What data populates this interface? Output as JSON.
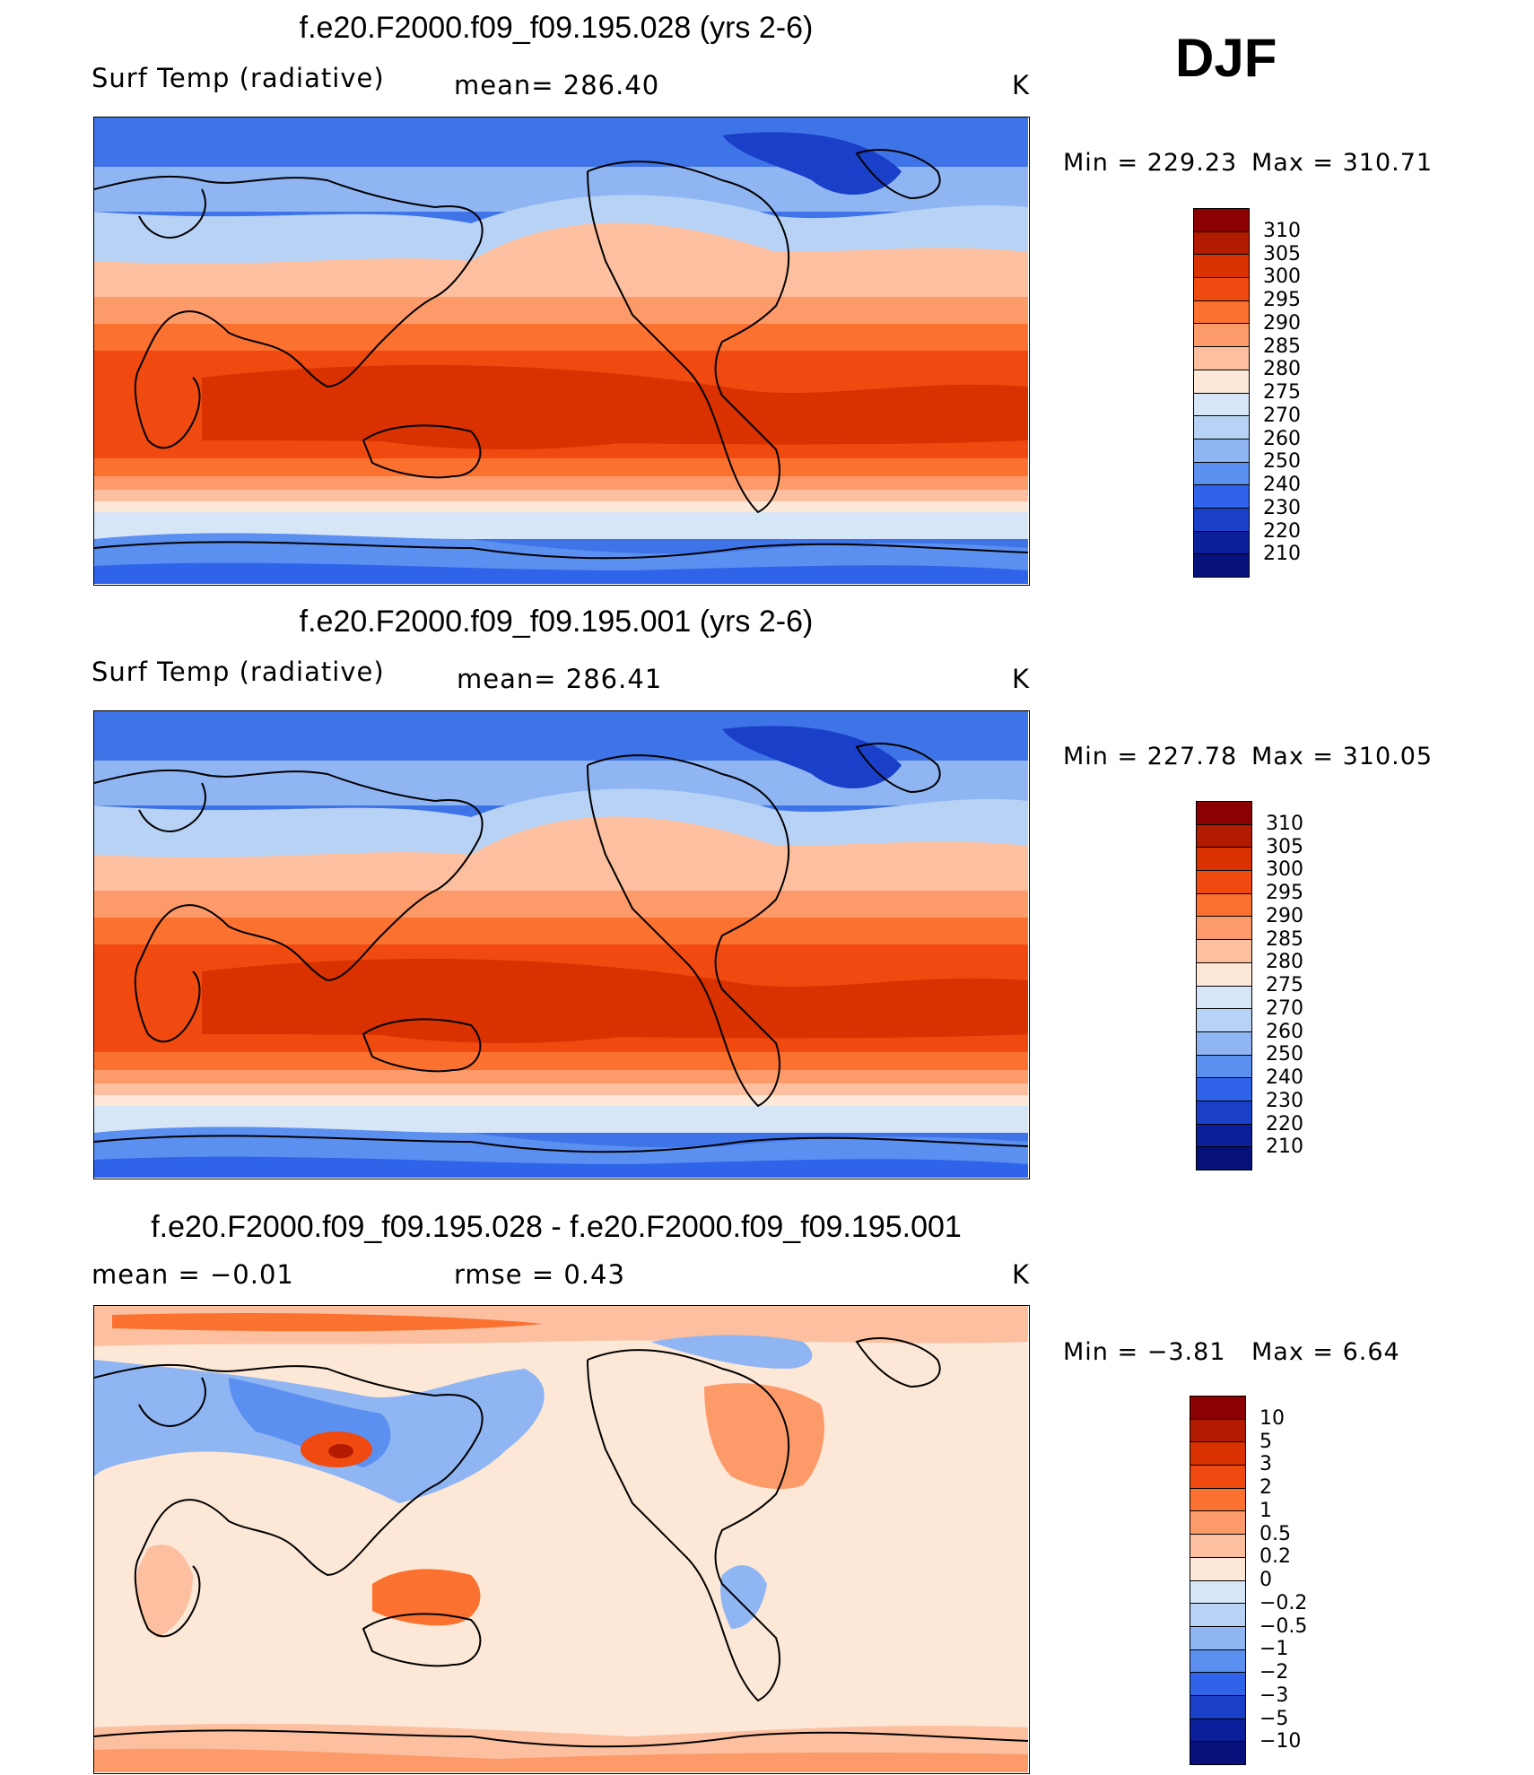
{
  "season": "DJF",
  "panels": [
    {
      "title": "f.e20.F2000.f09_f09.195.028 (yrs 2-6)",
      "left_label": "Surf Temp (radiative)",
      "center_label": "mean=  286.40",
      "units": "K",
      "min_label": "Min  =  229.23",
      "max_label": "Max  =  310.71",
      "legend_values": [
        "310",
        "305",
        "300",
        "295",
        "290",
        "285",
        "280",
        "275",
        "270",
        "260",
        "250",
        "240",
        "230",
        "220",
        "210"
      ],
      "legend_colors": [
        "#8b0000",
        "#b31b00",
        "#d93100",
        "#f04a10",
        "#fb7130",
        "#fd9a6a",
        "#fcc0a0",
        "#fde8d8",
        "#d6e6f7",
        "#b8d2f5",
        "#8fb5f3",
        "#5b8ff0",
        "#2f63ea",
        "#1a3fc8",
        "#0c1f9a",
        "#05107a"
      ]
    },
    {
      "title": "f.e20.F2000.f09_f09.195.001 (yrs 2-6)",
      "left_label": "Surf Temp (radiative)",
      "center_label": "mean=  286.41",
      "units": "K",
      "min_label": "Min  =  227.78",
      "max_label": "Max  =  310.05",
      "legend_values": [
        "310",
        "305",
        "300",
        "295",
        "290",
        "285",
        "280",
        "275",
        "270",
        "260",
        "250",
        "240",
        "230",
        "220",
        "210"
      ],
      "legend_colors": [
        "#8b0000",
        "#b31b00",
        "#d93100",
        "#f04a10",
        "#fb7130",
        "#fd9a6a",
        "#fcc0a0",
        "#fde8d8",
        "#d6e6f7",
        "#b8d2f5",
        "#8fb5f3",
        "#5b8ff0",
        "#2f63ea",
        "#1a3fc8",
        "#0c1f9a",
        "#05107a"
      ]
    },
    {
      "title": "f.e20.F2000.f09_f09.195.028 - f.e20.F2000.f09_f09.195.001",
      "left_label": "mean  =    −0.01",
      "center_label": "rmse  =     0.43",
      "units": "K",
      "min_label": "Min  =    −3.81",
      "max_label": "Max  =     6.64",
      "legend_values": [
        "10",
        "5",
        "3",
        "2",
        "1",
        "0.5",
        "0.2",
        "0",
        "−0.2",
        "−0.5",
        "−1",
        "−2",
        "−3",
        "−5",
        "−10"
      ],
      "legend_colors": [
        "#8b0000",
        "#b31b00",
        "#d93100",
        "#f04a10",
        "#fb7130",
        "#fd9a6a",
        "#fcc0a0",
        "#fde8d8",
        "#d6e6f7",
        "#b8d2f5",
        "#8fb5f3",
        "#5b8ff0",
        "#2f63ea",
        "#1a3fc8",
        "#0c1f9a",
        "#05107a"
      ]
    }
  ]
}
